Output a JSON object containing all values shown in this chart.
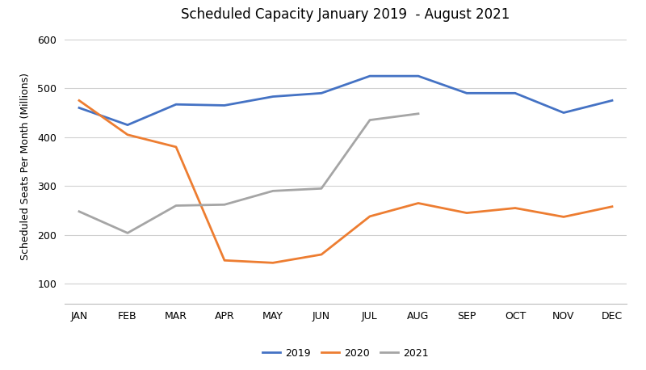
{
  "title": "Scheduled Capacity January 2019  - August 2021",
  "ylabel": "Scheduled Seats Per Month (Millions)",
  "months": [
    "JAN",
    "FEB",
    "MAR",
    "APR",
    "MAY",
    "JUN",
    "JUL",
    "AUG",
    "SEP",
    "OCT",
    "NOV",
    "DEC"
  ],
  "series_2019": [
    460,
    425,
    467,
    465,
    483,
    490,
    525,
    525,
    490,
    490,
    450,
    475
  ],
  "series_2020": [
    475,
    405,
    380,
    148,
    143,
    160,
    238,
    265,
    245,
    255,
    237,
    258
  ],
  "series_2021": [
    248,
    204,
    260,
    262,
    290,
    295,
    435,
    448,
    null,
    null,
    null,
    null
  ],
  "color_2019": "#4472C4",
  "color_2020": "#ED7D31",
  "color_2021": "#A5A5A5",
  "ylim_min": 60,
  "ylim_max": 620,
  "yticks": [
    100,
    200,
    300,
    400,
    500,
    600
  ],
  "legend_labels": [
    "2019",
    "2020",
    "2021"
  ],
  "background_color": "#FFFFFF",
  "grid_color": "#D0D0D0",
  "title_fontsize": 12,
  "axis_label_fontsize": 9,
  "tick_fontsize": 9,
  "legend_fontsize": 9,
  "line_width": 2.0
}
